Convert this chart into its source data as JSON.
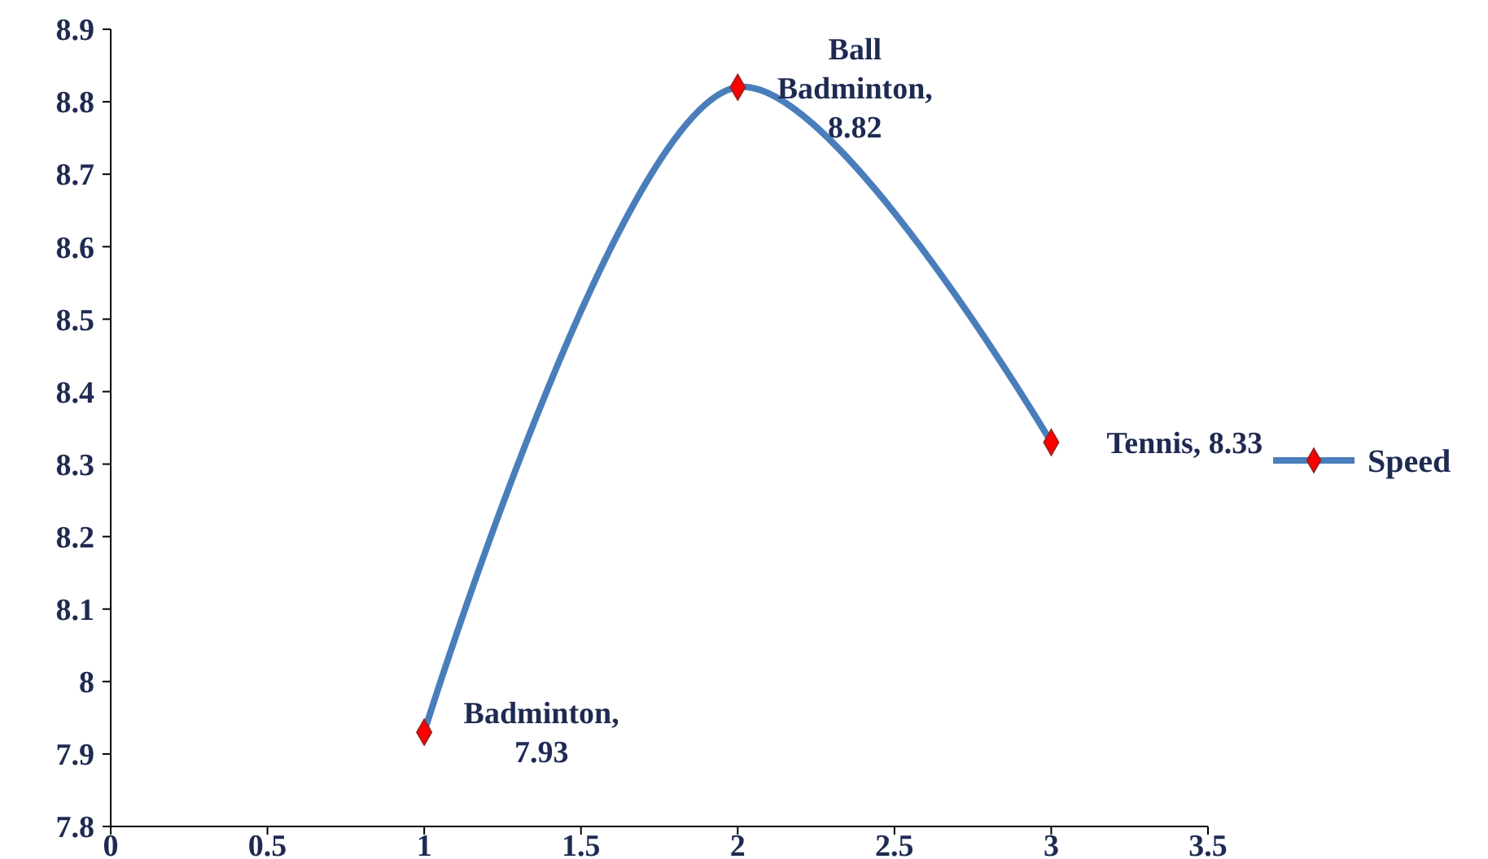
{
  "chart_data": {
    "type": "line",
    "x": [
      1,
      2,
      3
    ],
    "series": [
      {
        "name": "Speed",
        "color": "#4a7ebb",
        "values": [
          7.93,
          8.82,
          8.33
        ]
      }
    ],
    "xlim": [
      0,
      3.5
    ],
    "xticks": [
      0,
      0.5,
      1,
      1.5,
      2,
      2.5,
      3,
      3.5
    ],
    "ylim": [
      7.8,
      8.9
    ],
    "yticks": [
      7.8,
      7.9,
      {
        "value": 8,
        "label": "8"
      },
      8.1,
      8.2,
      8.3,
      8.4,
      8.5,
      8.6,
      8.7,
      8.8,
      8.9
    ],
    "annotations": [
      {
        "text": "Badminton, 7.93",
        "x": 1,
        "y": 7.93
      },
      {
        "text": "Ball Badminton, 8.82",
        "x": 2,
        "y": 8.82
      },
      {
        "text": "Tennis, 8.33",
        "x": 3,
        "y": 8.33
      }
    ],
    "marker": "diamond",
    "grid": false,
    "legend": "right"
  }
}
